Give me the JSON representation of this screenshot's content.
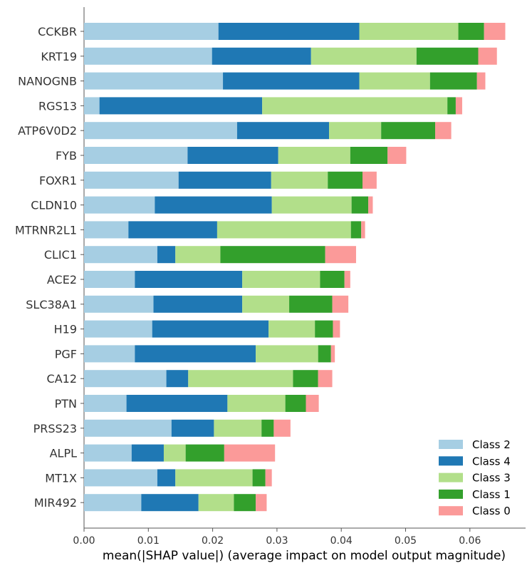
{
  "chart_data": {
    "type": "bar",
    "orientation": "horizontal",
    "stacked": true,
    "title": "",
    "xlabel": "mean(|SHAP value|) (average impact on model output magnitude)",
    "ylabel": "",
    "xlim": [
      0,
      0.0688
    ],
    "xticks": [
      "0.00",
      "0.01",
      "0.02",
      "0.03",
      "0.04",
      "0.05",
      "0.06"
    ],
    "grid": false,
    "legend_position": "bottom-right",
    "categories": [
      "CCKBR",
      "KRT19",
      "NANOGNB",
      "RGS13",
      "ATP6V0D2",
      "FYB",
      "FOXR1",
      "CLDN10",
      "MTRNR2L1",
      "CLIC1",
      "ACE2",
      "SLC38A1",
      "H19",
      "PGF",
      "CA12",
      "PTN",
      "PRSS23",
      "ALPL",
      "MT1X",
      "MIR492"
    ],
    "series": [
      {
        "name": "Class 2",
        "color": "#a6cee3",
        "values": [
          0.0209,
          0.0199,
          0.0216,
          0.0024,
          0.0238,
          0.0161,
          0.0147,
          0.011,
          0.0069,
          0.0114,
          0.0079,
          0.0108,
          0.0106,
          0.0079,
          0.0128,
          0.0066,
          0.0136,
          0.0074,
          0.0114,
          0.0089
        ]
      },
      {
        "name": "Class 4",
        "color": "#1f78b4",
        "values": [
          0.0219,
          0.0154,
          0.0212,
          0.0253,
          0.0143,
          0.0141,
          0.0144,
          0.0182,
          0.0138,
          0.0028,
          0.0167,
          0.0138,
          0.0181,
          0.0188,
          0.0034,
          0.0157,
          0.0066,
          0.005,
          0.0028,
          0.0089
        ]
      },
      {
        "name": "Class 3",
        "color": "#b2df8a",
        "values": [
          0.0154,
          0.0164,
          0.011,
          0.0288,
          0.0081,
          0.0112,
          0.0088,
          0.0124,
          0.0208,
          0.007,
          0.0121,
          0.0073,
          0.0072,
          0.0097,
          0.0163,
          0.009,
          0.0074,
          0.0034,
          0.012,
          0.0055
        ]
      },
      {
        "name": "Class 1",
        "color": "#33a02c",
        "values": [
          0.004,
          0.0096,
          0.0073,
          0.0013,
          0.0084,
          0.0058,
          0.0054,
          0.0026,
          0.0016,
          0.0163,
          0.0038,
          0.0067,
          0.0028,
          0.002,
          0.0039,
          0.0032,
          0.0019,
          0.006,
          0.002,
          0.0034
        ]
      },
      {
        "name": "Class 0",
        "color": "#fb9a99",
        "values": [
          0.0033,
          0.0029,
          0.0013,
          0.001,
          0.0025,
          0.0029,
          0.0022,
          0.0007,
          0.0006,
          0.0048,
          0.0009,
          0.0025,
          0.0011,
          0.0006,
          0.0022,
          0.002,
          0.0026,
          0.0079,
          0.001,
          0.0017
        ]
      }
    ],
    "legend_order": [
      "Class 2",
      "Class 4",
      "Class 3",
      "Class 1",
      "Class 0"
    ]
  }
}
